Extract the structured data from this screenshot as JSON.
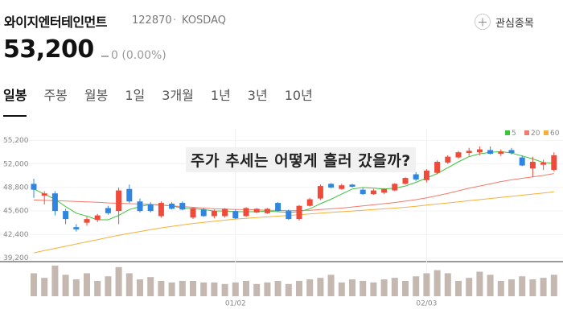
{
  "header": {
    "name": "와이지엔터테인먼트",
    "code": "122870",
    "market": "KOSDAQ",
    "watch_button": "관심종목",
    "price": "53,200",
    "change": "0",
    "change_percent": "(0.00%)"
  },
  "tabs": [
    "일봉",
    "주봉",
    "월봉",
    "1일",
    "3개월",
    "1년",
    "3년",
    "10년"
  ],
  "selected_tab": 0,
  "overlay_title": "주가 추세는 어떻게 흘러 갔을까?",
  "chart_data": {
    "type": "candlestick",
    "categories": [
      null,
      null,
      null,
      null,
      null,
      null,
      null,
      null,
      null,
      null,
      null,
      null,
      null,
      null,
      null,
      null,
      null,
      null,
      null,
      "01/02",
      null,
      null,
      null,
      null,
      null,
      null,
      null,
      null,
      null,
      null,
      null,
      null,
      null,
      null,
      null,
      null,
      null,
      "02/03",
      null,
      null,
      null,
      null,
      null,
      null,
      null,
      null,
      null,
      null,
      null,
      null
    ],
    "open": [
      49300,
      47700,
      48000,
      45600,
      43400,
      44000,
      44400,
      46000,
      45600,
      48600,
      46900,
      46500,
      44900,
      46600,
      46700,
      44700,
      45800,
      44900,
      44900,
      45600,
      44900,
      45400,
      45300,
      46700,
      45600,
      44500,
      46300,
      47300,
      49300,
      48600,
      49200,
      48500,
      47900,
      48100,
      48400,
      49300,
      50600,
      49800,
      50800,
      52200,
      52900,
      53500,
      53600,
      53900,
      53400,
      53900,
      52900,
      51400,
      51900,
      51200
    ],
    "high": [
      50000,
      48300,
      48300,
      45900,
      43800,
      44800,
      45200,
      46300,
      48800,
      49200,
      47300,
      46800,
      46900,
      46800,
      46900,
      46100,
      46000,
      45800,
      46000,
      45800,
      46100,
      46000,
      46000,
      46800,
      45800,
      46400,
      47400,
      49200,
      49400,
      49300,
      49300,
      48700,
      48600,
      48700,
      49400,
      50200,
      50900,
      51300,
      52500,
      53200,
      53800,
      54200,
      54400,
      54400,
      54000,
      54200,
      53200,
      53000,
      52600,
      53600
    ],
    "low": [
      47400,
      46500,
      45000,
      43800,
      42800,
      43600,
      44100,
      45100,
      43800,
      46700,
      45400,
      45400,
      44700,
      45800,
      45700,
      44500,
      44800,
      44600,
      44700,
      44500,
      44800,
      45300,
      45200,
      45500,
      44400,
      44300,
      46200,
      47100,
      48700,
      48500,
      48800,
      47800,
      47800,
      47900,
      48300,
      49200,
      49700,
      49500,
      50600,
      52000,
      52700,
      53100,
      53200,
      53300,
      53100,
      53300,
      51700,
      50200,
      51200,
      51000
    ],
    "close": [
      48500,
      48000,
      45600,
      44500,
      43100,
      44500,
      45000,
      45300,
      48400,
      46900,
      45600,
      45600,
      46700,
      45900,
      45800,
      46000,
      44900,
      45600,
      45900,
      44600,
      46000,
      45900,
      45900,
      45600,
      44500,
      46300,
      47200,
      49000,
      48800,
      49100,
      48900,
      47900,
      48400,
      48600,
      49300,
      50100,
      49900,
      51100,
      52300,
      53000,
      53600,
      53800,
      54000,
      53400,
      53700,
      53500,
      51800,
      52300,
      52200,
      53200
    ],
    "up_color": "#f04a3a",
    "down_color": "#2f86e0",
    "series": [
      {
        "name": "5",
        "color": "#3cc43c",
        "values": [
          48600,
          47900,
          47200,
          46200,
          45300,
          44900,
          44400,
          44400,
          45000,
          45800,
          46200,
          46500,
          46400,
          46300,
          46000,
          45900,
          45800,
          45600,
          45600,
          45500,
          45500,
          45500,
          45600,
          45500,
          45400,
          45500,
          45900,
          46600,
          47200,
          47900,
          48600,
          48800,
          48700,
          48600,
          48700,
          49000,
          49500,
          50100,
          50700,
          51500,
          52300,
          53000,
          53400,
          53600,
          53700,
          53500,
          53100,
          52700,
          52200,
          52100
        ]
      },
      {
        "name": "20",
        "color": "#f27a6e",
        "values": [
          47100,
          47050,
          47000,
          46950,
          46900,
          46850,
          46800,
          46700,
          46650,
          46600,
          46550,
          46500,
          46400,
          46300,
          46200,
          46100,
          46000,
          45900,
          45850,
          45800,
          45800,
          45750,
          45700,
          45700,
          45650,
          45650,
          45700,
          45800,
          45900,
          46000,
          46150,
          46300,
          46450,
          46600,
          46750,
          46950,
          47150,
          47400,
          47700,
          48000,
          48350,
          48700,
          49000,
          49300,
          49600,
          49850,
          50050,
          50250,
          50450,
          50700
        ]
      },
      {
        "name": "60",
        "color": "#f5b03a",
        "values": [
          39900,
          40200,
          40500,
          40800,
          41100,
          41400,
          41700,
          42000,
          42300,
          42550,
          42800,
          43050,
          43300,
          43500,
          43700,
          43900,
          44050,
          44200,
          44350,
          44500,
          44600,
          44700,
          44800,
          44900,
          45000,
          45100,
          45200,
          45300,
          45400,
          45500,
          45600,
          45700,
          45800,
          45900,
          46000,
          46100,
          46250,
          46400,
          46550,
          46700,
          46850,
          47000,
          47150,
          47300,
          47450,
          47600,
          47750,
          47900,
          48050,
          48200
        ]
      }
    ],
    "volume": {
      "color": "#c4b8b1",
      "ylim": [
        0,
        42
      ],
      "values": [
        30,
        24,
        40,
        28,
        22,
        30,
        20,
        26,
        38,
        30,
        22,
        25,
        20,
        18,
        20,
        20,
        18,
        18,
        16,
        18,
        20,
        16,
        18,
        20,
        16,
        20,
        22,
        24,
        28,
        18,
        22,
        20,
        18,
        22,
        24,
        20,
        26,
        30,
        34,
        30,
        20,
        24,
        32,
        28,
        20,
        22,
        26,
        22,
        24,
        28
      ]
    },
    "ylim": [
      38700,
      56800
    ],
    "yticks": [
      {
        "value": 55200,
        "label": "55,200"
      },
      {
        "value": 52000,
        "label": "52,000"
      },
      {
        "value": 48800,
        "label": "48,800"
      },
      {
        "value": 45600,
        "label": "45,600"
      },
      {
        "value": 42400,
        "label": "42,400"
      },
      {
        "value": 39200,
        "label": "39,200"
      }
    ],
    "legend": "top-right"
  }
}
